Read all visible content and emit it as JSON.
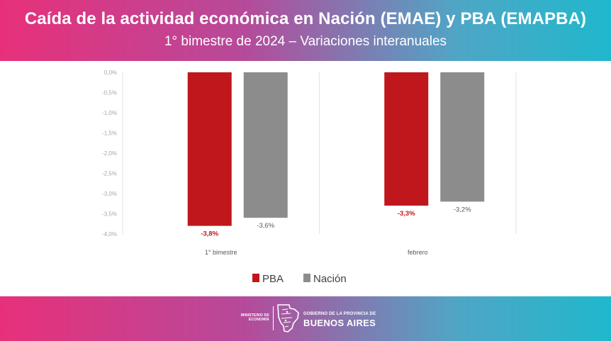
{
  "header": {
    "title": "Caída de la actividad económica en Nación (EMAE) y PBA (EMAPBA)",
    "subtitle": "1° bimestre de 2024 – Variaciones interanuales"
  },
  "chart_data": {
    "type": "bar",
    "categories": [
      "1° bimestre",
      "febrero"
    ],
    "series": [
      {
        "name": "PBA",
        "values": [
          -3.8,
          -3.3
        ],
        "labels": [
          "-3,8%",
          "-3,3%"
        ],
        "color": "#c0171c"
      },
      {
        "name": "Nación",
        "values": [
          -3.6,
          -3.2
        ],
        "labels": [
          "-3,6%",
          "-3,2%"
        ],
        "color": "#8c8c8c"
      }
    ],
    "y_ticks": [
      {
        "value": 0.0,
        "label": "0,0%"
      },
      {
        "value": -0.5,
        "label": "-0,5%"
      },
      {
        "value": -1.0,
        "label": "-1,0%"
      },
      {
        "value": -1.5,
        "label": "-1,5%"
      },
      {
        "value": -2.0,
        "label": "-2,0%"
      },
      {
        "value": -2.5,
        "label": "-2,5%"
      },
      {
        "value": -3.0,
        "label": "-3,0%"
      },
      {
        "value": -3.5,
        "label": "-3,5%"
      },
      {
        "value": -4.0,
        "label": "-4,0%"
      }
    ],
    "ylim": [
      -4.0,
      0.0
    ],
    "legend_position": "bottom",
    "grid": false
  },
  "footer": {
    "ministry": "MINISTERIO DE ECONOMÍA",
    "gov_top": "GOBIERNO DE LA PROVINCIA DE",
    "gov_main": "BUENOS AIRES"
  },
  "colors": {
    "gradient_start": "#e8307a",
    "gradient_end": "#1fb8cc",
    "pba": "#c0171c",
    "nacion": "#8c8c8c"
  }
}
